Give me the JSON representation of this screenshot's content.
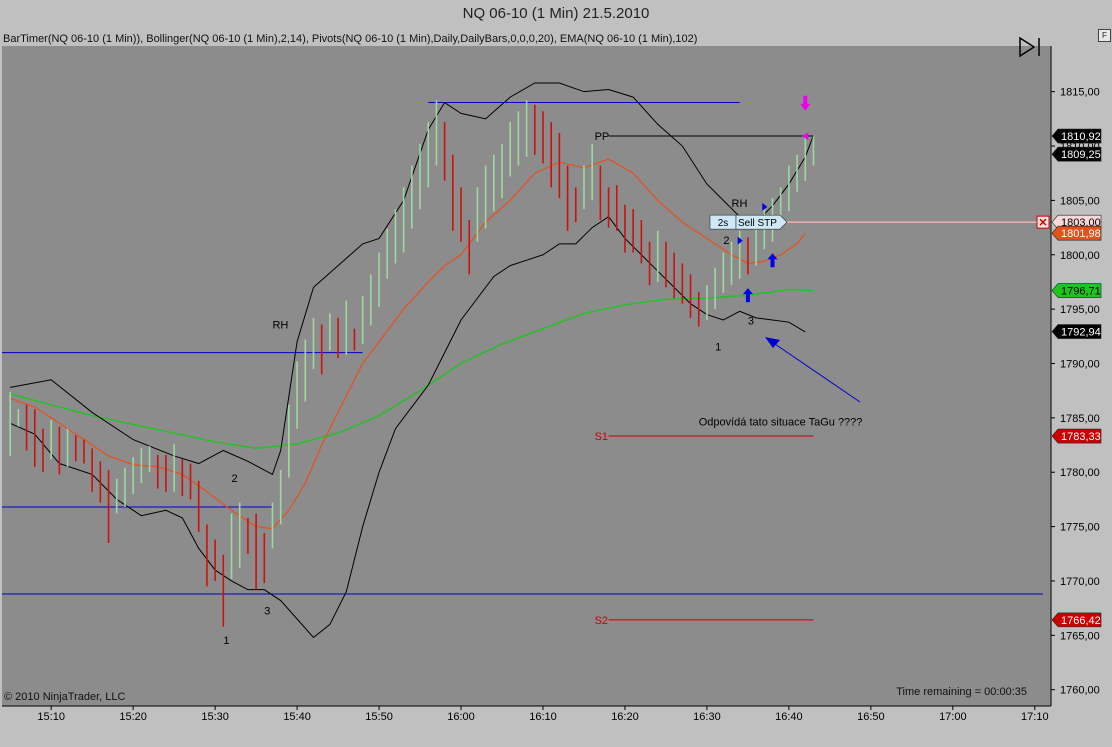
{
  "window": {
    "title": "NQ 06-10 (1 Min)  21.5.2010",
    "indicators": "BarTimer(NQ 06-10 (1 Min)), Bollinger(NQ 06-10 (1 Min),2,14), Pivots(NQ 06-10 (1 Min),Daily,DailyBars,0,0,0,20), EMA(NQ 06-10 (1 Min),102)",
    "f_button": "F",
    "copyright": "© 2010 NinjaTrader, LLC",
    "time_remaining": "Time remaining = 00:00:35"
  },
  "chart_data": {
    "type": "candlestick",
    "instrument": "NQ 06-10",
    "interval": "1 Min",
    "date": "21.5.2010",
    "x_ticks": [
      "15:10",
      "15:20",
      "15:30",
      "15:40",
      "15:50",
      "16:00",
      "16:10",
      "16:20",
      "16:30",
      "16:40",
      "16:50",
      "17:00",
      "17:10"
    ],
    "x_range": [
      "15:04",
      "17:11"
    ],
    "y_ticks": [
      "1760,00",
      "1765,00",
      "1770,00",
      "1775,00",
      "1780,00",
      "1785,00",
      "1790,00",
      "1795,00",
      "1800,00",
      "1805,00",
      "1810,00",
      "1815,00"
    ],
    "ylim": [
      1758.5,
      1819.2
    ],
    "colors": {
      "up": "#9fd89f",
      "down": "#cc1111",
      "bb": "#000000",
      "ema_fast": "#e8501a",
      "ema_slow": "#1fc41f",
      "lines": "#0000cc",
      "pivot": "#cc0000"
    },
    "bars": [
      [
        "15:05",
        1787.4,
        1781.5
      ],
      [
        "15:06",
        1785.8,
        1784.2
      ],
      [
        "15:07",
        1786.2,
        1782.0
      ],
      [
        "15:08",
        1785.8,
        1780.5
      ],
      [
        "15:09",
        1784.0,
        1780.0
      ],
      [
        "15:10",
        1784.8,
        1781.2
      ],
      [
        "15:11",
        1784.2,
        1779.8
      ],
      [
        "15:12",
        1784.0,
        1780.5
      ],
      [
        "15:13",
        1783.4,
        1781.0
      ],
      [
        "15:14",
        1783.0,
        1780.8
      ],
      [
        "15:15",
        1782.2,
        1778.2
      ],
      [
        "15:16",
        1781.0,
        1777.2
      ],
      [
        "15:17",
        1780.2,
        1773.5
      ],
      [
        "15:18",
        1779.4,
        1776.2
      ],
      [
        "15:19",
        1780.4,
        1776.8
      ],
      [
        "15:20",
        1781.4,
        1778.0
      ],
      [
        "15:21",
        1782.2,
        1779.0
      ],
      [
        "15:22",
        1782.4,
        1780.0
      ],
      [
        "15:23",
        1781.6,
        1778.5
      ],
      [
        "15:24",
        1781.6,
        1778.2
      ],
      [
        "15:25",
        1782.6,
        1778.2
      ],
      [
        "15:26",
        1781.2,
        1777.8
      ],
      [
        "15:27",
        1780.8,
        1777.5
      ],
      [
        "15:28",
        1779.2,
        1774.5
      ],
      [
        "15:29",
        1775.2,
        1769.5
      ],
      [
        "15:30",
        1773.8,
        1770.0
      ],
      [
        "15:31",
        1772.4,
        1765.8
      ],
      [
        "15:32",
        1776.2,
        1770.2
      ],
      [
        "15:33",
        1777.2,
        1771.2
      ],
      [
        "15:34",
        1775.8,
        1772.5
      ],
      [
        "15:35",
        1776.2,
        1769.2
      ],
      [
        "15:36",
        1774.4,
        1769.8
      ],
      [
        "15:37",
        1777.2,
        1773.0
      ],
      [
        "15:38",
        1780.2,
        1775.2
      ],
      [
        "15:39",
        1786.2,
        1779.5
      ],
      [
        "15:40",
        1790.2,
        1784.0
      ],
      [
        "15:41",
        1792.2,
        1786.5
      ],
      [
        "15:42",
        1794.2,
        1789.5
      ],
      [
        "15:43",
        1793.6,
        1789.0
      ],
      [
        "15:44",
        1794.6,
        1791.2
      ],
      [
        "15:45",
        1794.2,
        1790.5
      ],
      [
        "15:46",
        1795.8,
        1790.8
      ],
      [
        "15:47",
        1793.2,
        1791.2
      ],
      [
        "15:48",
        1796.2,
        1791.8
      ],
      [
        "15:49",
        1798.2,
        1793.5
      ],
      [
        "15:50",
        1800.2,
        1795.2
      ],
      [
        "15:51",
        1802.4,
        1797.8
      ],
      [
        "15:52",
        1804.2,
        1799.2
      ],
      [
        "15:53",
        1806.2,
        1800.2
      ],
      [
        "15:54",
        1808.2,
        1802.4
      ],
      [
        "15:55",
        1810.2,
        1804.2
      ],
      [
        "15:56",
        1812.2,
        1806.2
      ],
      [
        "15:57",
        1814.2,
        1808.2
      ],
      [
        "15:58",
        1812.2,
        1806.8
      ],
      [
        "15:59",
        1809.2,
        1802.2
      ],
      [
        "16:00",
        1806.2,
        1801.2
      ],
      [
        "16:01",
        1803.2,
        1798.2
      ],
      [
        "16:02",
        1806.2,
        1801.2
      ],
      [
        "16:03",
        1808.2,
        1802.4
      ],
      [
        "16:04",
        1809.2,
        1804.0
      ],
      [
        "16:05",
        1810.2,
        1805.2
      ],
      [
        "16:06",
        1812.2,
        1807.2
      ],
      [
        "16:07",
        1813.2,
        1808.2
      ],
      [
        "16:08",
        1814.2,
        1809.0
      ],
      [
        "16:09",
        1813.8,
        1809.2
      ],
      [
        "16:10",
        1813.2,
        1808.4
      ],
      [
        "16:11",
        1812.2,
        1806.2
      ],
      [
        "16:12",
        1811.2,
        1805.2
      ],
      [
        "16:13",
        1808.2,
        1802.2
      ],
      [
        "16:14",
        1806.2,
        1803.0
      ],
      [
        "16:15",
        1808.2,
        1804.2
      ],
      [
        "16:16",
        1810.2,
        1805.0
      ],
      [
        "16:17",
        1808.2,
        1803.2
      ],
      [
        "16:18",
        1806.2,
        1802.5
      ],
      [
        "16:19",
        1806.4,
        1802.2
      ],
      [
        "16:20",
        1804.6,
        1800.2
      ],
      [
        "16:21",
        1804.2,
        1800.2
      ],
      [
        "16:22",
        1803.2,
        1799.2
      ],
      [
        "16:23",
        1801.2,
        1797.2
      ],
      [
        "16:24",
        1802.2,
        1797.5
      ],
      [
        "16:25",
        1801.2,
        1797.0
      ],
      [
        "16:26",
        1800.2,
        1796.0
      ],
      [
        "16:27",
        1799.2,
        1795.5
      ],
      [
        "16:28",
        1798.2,
        1794.2
      ],
      [
        "16:29",
        1796.6,
        1793.4
      ],
      [
        "16:30",
        1797.2,
        1794.0
      ],
      [
        "16:31",
        1798.8,
        1795.0
      ],
      [
        "16:32",
        1800.2,
        1796.5
      ],
      [
        "16:33",
        1801.2,
        1797.2
      ],
      [
        "16:34",
        1802.2,
        1797.8
      ],
      [
        "16:35",
        1801.6,
        1798.2
      ],
      [
        "16:36",
        1803.2,
        1799.0
      ],
      [
        "16:37",
        1804.2,
        1800.5
      ],
      [
        "16:38",
        1805.2,
        1801.2
      ],
      [
        "16:39",
        1806.2,
        1802.4
      ],
      [
        "16:40",
        1808.2,
        1804.0
      ],
      [
        "16:41",
        1809.2,
        1805.8
      ],
      [
        "16:42",
        1810.8,
        1806.8
      ],
      [
        "16:43",
        1811.0,
        1808.2
      ]
    ],
    "bollinger": {
      "upper": [
        [
          "15:05",
          1787.8
        ],
        [
          "15:10",
          1788.5
        ],
        [
          "15:15",
          1785.5
        ],
        [
          "15:20",
          1783.0
        ],
        [
          "15:25",
          1781.5
        ],
        [
          "15:28",
          1780.8
        ],
        [
          "15:31",
          1782.0
        ],
        [
          "15:34",
          1781.0
        ],
        [
          "15:37",
          1779.8
        ],
        [
          "15:38",
          1782.0
        ],
        [
          "15:40",
          1792.0
        ],
        [
          "15:42",
          1797.0
        ],
        [
          "15:45",
          1799.0
        ],
        [
          "15:48",
          1801.0
        ],
        [
          "15:50",
          1801.5
        ],
        [
          "15:53",
          1805.0
        ],
        [
          "15:56",
          1811.5
        ],
        [
          "15:58",
          1814.0
        ],
        [
          "16:00",
          1813.0
        ],
        [
          "16:03",
          1812.5
        ],
        [
          "16:06",
          1814.5
        ],
        [
          "16:09",
          1815.8
        ],
        [
          "16:12",
          1815.8
        ],
        [
          "16:15",
          1815.0
        ],
        [
          "16:18",
          1815.2
        ],
        [
          "16:21",
          1814.5
        ],
        [
          "16:24",
          1812.0
        ],
        [
          "16:27",
          1810.0
        ],
        [
          "16:30",
          1806.5
        ],
        [
          "16:32",
          1805.0
        ],
        [
          "16:34",
          1803.5
        ],
        [
          "16:36",
          1803.0
        ],
        [
          "16:38",
          1804.5
        ],
        [
          "16:40",
          1806.5
        ],
        [
          "16:42",
          1809.0
        ],
        [
          "16:43",
          1811.0
        ]
      ],
      "lower": [
        [
          "15:05",
          1784.5
        ],
        [
          "15:08",
          1783.5
        ],
        [
          "15:11",
          1780.8
        ],
        [
          "15:15",
          1779.8
        ],
        [
          "15:18",
          1777.5
        ],
        [
          "15:21",
          1776.0
        ],
        [
          "15:24",
          1776.5
        ],
        [
          "15:26",
          1775.8
        ],
        [
          "15:28",
          1773.0
        ],
        [
          "15:30",
          1771.0
        ],
        [
          "15:32",
          1770.0
        ],
        [
          "15:34",
          1769.2
        ],
        [
          "15:36",
          1769.2
        ],
        [
          "15:38",
          1768.2
        ],
        [
          "15:40",
          1766.5
        ],
        [
          "15:42",
          1764.8
        ],
        [
          "15:44",
          1766.0
        ],
        [
          "15:46",
          1769.0
        ],
        [
          "15:48",
          1775.0
        ],
        [
          "15:50",
          1780.0
        ],
        [
          "15:52",
          1784.0
        ],
        [
          "15:54",
          1786.0
        ],
        [
          "15:56",
          1788.0
        ],
        [
          "15:58",
          1791.0
        ],
        [
          "16:00",
          1794.0
        ],
        [
          "16:02",
          1796.0
        ],
        [
          "16:04",
          1798.0
        ],
        [
          "16:06",
          1799.0
        ],
        [
          "16:08",
          1799.5
        ],
        [
          "16:10",
          1800.0
        ],
        [
          "16:12",
          1801.0
        ],
        [
          "16:14",
          1801.0
        ],
        [
          "16:16",
          1802.5
        ],
        [
          "16:18",
          1803.5
        ],
        [
          "16:20",
          1801.5
        ],
        [
          "16:22",
          1800.0
        ],
        [
          "16:24",
          1798.5
        ],
        [
          "16:26",
          1797.0
        ],
        [
          "16:28",
          1795.5
        ],
        [
          "16:30",
          1794.5
        ],
        [
          "16:32",
          1794.0
        ],
        [
          "16:34",
          1794.8
        ],
        [
          "16:36",
          1794.2
        ],
        [
          "16:38",
          1794.0
        ],
        [
          "16:40",
          1793.8
        ],
        [
          "16:42",
          1792.9
        ]
      ],
      "middle": [
        [
          "15:05",
          1786.8
        ],
        [
          "15:08",
          1786.0
        ],
        [
          "15:11",
          1784.5
        ],
        [
          "15:14",
          1783.0
        ],
        [
          "15:17",
          1781.5
        ],
        [
          "15:20",
          1780.7
        ],
        [
          "15:23",
          1780.5
        ],
        [
          "15:26",
          1779.8
        ],
        [
          "15:29",
          1778.2
        ],
        [
          "15:32",
          1776.5
        ],
        [
          "15:35",
          1775.0
        ],
        [
          "15:37",
          1774.8
        ],
        [
          "15:39",
          1776.5
        ],
        [
          "15:41",
          1779.0
        ],
        [
          "15:43",
          1782.5
        ],
        [
          "15:46",
          1787.0
        ],
        [
          "15:48",
          1790.0
        ],
        [
          "15:50",
          1792.0
        ],
        [
          "15:53",
          1795.0
        ],
        [
          "15:56",
          1797.5
        ],
        [
          "15:58",
          1799.0
        ],
        [
          "16:00",
          1800.0
        ],
        [
          "16:03",
          1803.0
        ],
        [
          "16:06",
          1805.0
        ],
        [
          "16:09",
          1807.5
        ],
        [
          "16:12",
          1808.5
        ],
        [
          "16:15",
          1808.0
        ],
        [
          "16:18",
          1808.8
        ],
        [
          "16:21",
          1807.5
        ],
        [
          "16:24",
          1805.0
        ],
        [
          "16:27",
          1803.0
        ],
        [
          "16:30",
          1801.5
        ],
        [
          "16:33",
          1800.0
        ],
        [
          "16:35",
          1799.2
        ],
        [
          "16:37",
          1799.4
        ],
        [
          "16:39",
          1800.0
        ],
        [
          "16:41",
          1801.0
        ],
        [
          "16:42",
          1801.98
        ]
      ]
    },
    "ema102": [
      [
        "15:05",
        1787.2
      ],
      [
        "15:10",
        1786.2
      ],
      [
        "15:15",
        1785.2
      ],
      [
        "15:20",
        1784.4
      ],
      [
        "15:25",
        1783.6
      ],
      [
        "15:30",
        1782.8
      ],
      [
        "15:35",
        1782.2
      ],
      [
        "15:40",
        1782.6
      ],
      [
        "15:45",
        1783.6
      ],
      [
        "15:50",
        1785.2
      ],
      [
        "15:55",
        1787.5
      ],
      [
        "16:00",
        1790.0
      ],
      [
        "16:05",
        1791.8
      ],
      [
        "16:10",
        1793.2
      ],
      [
        "16:15",
        1794.6
      ],
      [
        "16:20",
        1795.4
      ],
      [
        "16:25",
        1795.9
      ],
      [
        "16:30",
        1796.0
      ],
      [
        "16:35",
        1796.3
      ],
      [
        "16:40",
        1796.8
      ],
      [
        "16:43",
        1796.71
      ]
    ],
    "horizontal_lines": [
      {
        "y": 1791.0,
        "x_from": "15:04",
        "x_to": "15:48"
      },
      {
        "y": 1776.8,
        "x_from": "15:04",
        "x_to": "15:37"
      },
      {
        "y": 1768.8,
        "x_from": "15:04",
        "x_to": "17:11"
      },
      {
        "y": 1814.0,
        "x_from": "15:56",
        "x_to": "16:34"
      }
    ],
    "pivots": [
      {
        "label": "PP",
        "y": 1810.92,
        "color": "#000000",
        "x_from": "16:18",
        "x_to": "16:43"
      },
      {
        "label": "S1",
        "y": 1783.33,
        "color": "#cc0000",
        "x_from": "16:18",
        "x_to": "16:43"
      },
      {
        "label": "S2",
        "y": 1766.42,
        "color": "#cc0000",
        "x_from": "16:18",
        "x_to": "16:43"
      }
    ],
    "price_markers": [
      {
        "label": "1810,92",
        "y": 1810.92,
        "bg": "#000000",
        "fg": "#ffffff"
      },
      {
        "label": "1809,25",
        "y": 1809.25,
        "bg": "#000000",
        "fg": "#ffffff"
      },
      {
        "label": "1803,00",
        "y": 1803.0,
        "bg": "#f8d8d8",
        "fg": "#000000"
      },
      {
        "label": "1801,98",
        "y": 1801.98,
        "bg": "#e8501a",
        "fg": "#ffffff"
      },
      {
        "label": "1796,71",
        "y": 1796.71,
        "bg": "#1fc41f",
        "fg": "#000000"
      },
      {
        "label": "1792,94",
        "y": 1792.94,
        "bg": "#000000",
        "fg": "#ffffff"
      },
      {
        "label": "1783,33",
        "y": 1783.33,
        "bg": "#cc0000",
        "fg": "#ffffff"
      },
      {
        "label": "1766,42",
        "y": 1766.42,
        "bg": "#cc0000",
        "fg": "#ffffff"
      }
    ],
    "order": {
      "timer": "2s",
      "label": "Sell STP",
      "y": 1803.0
    },
    "annotations": [
      {
        "text": "RH",
        "x": "15:37",
        "y": 1793.2
      },
      {
        "text": "2",
        "x": "15:32",
        "y": 1779.1
      },
      {
        "text": "3",
        "x": "15:36",
        "y": 1766.9
      },
      {
        "text": "1",
        "x": "15:31",
        "y": 1764.2
      },
      {
        "text": "RH",
        "x": "16:33",
        "y": 1804.4
      },
      {
        "text": "2",
        "x": "16:32",
        "y": 1801.0
      },
      {
        "text": "3",
        "x": "16:35",
        "y": 1793.6
      },
      {
        "text": "1",
        "x": "16:31",
        "y": 1791.2
      },
      {
        "text": "Odpovídá tato situace TaGu ????",
        "x": "16:29",
        "y": 1784.3
      }
    ],
    "blue_up_arrows": [
      [
        "16:35",
        1796.2
      ],
      [
        "16:38",
        1799.4
      ]
    ],
    "blue_right_markers": [
      [
        "16:34",
        1801.3
      ],
      [
        "16:37",
        1804.4
      ]
    ],
    "magenta_markers": [
      [
        "16:42",
        1810.9
      ]
    ],
    "magenta_down_arrow": [
      "16:42",
      1813.8
    ]
  }
}
